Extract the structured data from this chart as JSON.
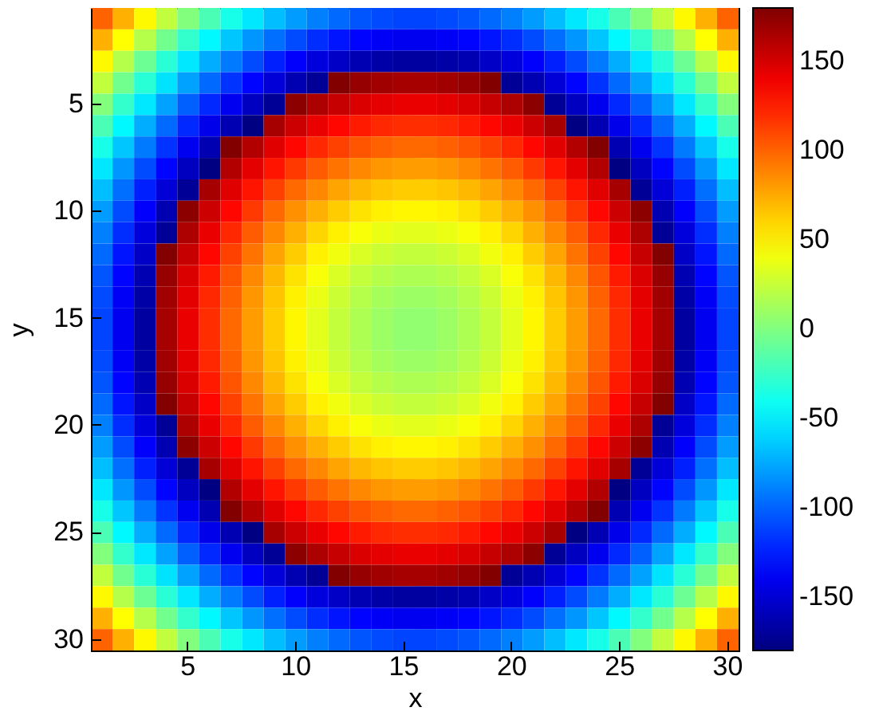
{
  "chart_data": {
    "type": "heatmap",
    "xlabel": "x",
    "ylabel": "y",
    "categories": [
      null,
      null,
      null,
      null,
      "5",
      null,
      null,
      null,
      null,
      "10",
      null,
      null,
      null,
      null,
      "15",
      null,
      null,
      null,
      null,
      "20",
      null,
      null,
      null,
      null,
      "25",
      null,
      null,
      null,
      null,
      "30"
    ],
    "y_categories": [
      null,
      null,
      null,
      null,
      "5",
      null,
      null,
      null,
      null,
      "10",
      null,
      null,
      null,
      null,
      "15",
      null,
      null,
      null,
      null,
      "20",
      null,
      null,
      null,
      null,
      "25",
      null,
      null,
      null,
      null,
      "30"
    ],
    "clim": [
      -180,
      180
    ],
    "cticks": [
      -150,
      -100,
      -50,
      0,
      50,
      100,
      150
    ],
    "cells": [
      [
        100,
        73,
        47,
        23,
        1,
        -19,
        -37,
        -53,
        -68,
        -80,
        -90,
        -98,
        -105,
        -109,
        -111,
        -111,
        -109,
        -105,
        -98,
        -90,
        -80,
        -68,
        -53,
        -37,
        -19,
        1,
        23,
        47,
        73,
        100
      ],
      [
        73,
        45,
        19,
        -5,
        -27,
        -47,
        -65,
        -82,
        -96,
        -109,
        -119,
        -128,
        -134,
        -138,
        -140,
        -140,
        -138,
        -134,
        -128,
        -119,
        -109,
        -96,
        -82,
        -65,
        -47,
        -27,
        -5,
        19,
        45,
        73
      ],
      [
        47,
        19,
        -7,
        -31,
        -53,
        -74,
        -92,
        -109,
        -124,
        -136,
        -147,
        -155,
        -162,
        -166,
        -168,
        -168,
        -166,
        -162,
        -155,
        -147,
        -136,
        -124,
        -109,
        -92,
        -74,
        -53,
        -31,
        -7,
        19,
        47
      ],
      [
        23,
        -5,
        -31,
        -55,
        -78,
        -98,
        -117,
        -134,
        -149,
        -162,
        -172,
        179,
        172,
        168,
        166,
        166,
        168,
        172,
        179,
        -172,
        -162,
        -149,
        -134,
        -117,
        -98,
        -78,
        -55,
        -31,
        -5,
        23
      ],
      [
        1,
        -27,
        -53,
        -78,
        -101,
        -121,
        -140,
        -157,
        -172,
        175,
        164,
        155,
        148,
        144,
        142,
        142,
        144,
        148,
        155,
        164,
        175,
        -172,
        -157,
        -140,
        -121,
        -101,
        -78,
        -53,
        -27,
        1
      ],
      [
        -19,
        -47,
        -74,
        -98,
        -121,
        -142,
        -162,
        -179,
        166,
        153,
        142,
        133,
        126,
        121,
        119,
        119,
        121,
        126,
        133,
        142,
        153,
        166,
        -179,
        -162,
        -142,
        -121,
        -98,
        -74,
        -47,
        -19
      ],
      [
        -37,
        -65,
        -92,
        -117,
        -140,
        -162,
        179,
        162,
        146,
        133,
        121,
        112,
        105,
        101,
        98,
        98,
        101,
        105,
        112,
        121,
        133,
        146,
        162,
        179,
        -162,
        -140,
        -117,
        -92,
        -65,
        -37
      ],
      [
        -53,
        -82,
        -109,
        -134,
        -157,
        -179,
        162,
        144,
        128,
        115,
        103,
        94,
        87,
        82,
        80,
        80,
        82,
        87,
        94,
        103,
        115,
        128,
        144,
        162,
        -179,
        -157,
        -134,
        -109,
        -82,
        -53
      ],
      [
        -68,
        -96,
        -124,
        -149,
        -172,
        166,
        146,
        128,
        112,
        98,
        87,
        77,
        70,
        65,
        63,
        63,
        65,
        70,
        77,
        87,
        98,
        112,
        128,
        146,
        166,
        -172,
        -149,
        -124,
        -96,
        -68
      ],
      [
        -80,
        -109,
        -136,
        -162,
        175,
        153,
        133,
        115,
        98,
        84,
        73,
        63,
        55,
        50,
        48,
        48,
        50,
        55,
        63,
        73,
        84,
        98,
        115,
        133,
        153,
        175,
        -162,
        -136,
        -109,
        -80
      ],
      [
        -90,
        -119,
        -147,
        -172,
        164,
        142,
        121,
        103,
        87,
        73,
        60,
        50,
        43,
        38,
        35,
        35,
        38,
        43,
        50,
        60,
        73,
        87,
        103,
        121,
        142,
        164,
        -172,
        -147,
        -119,
        -90
      ],
      [
        -98,
        -128,
        -155,
        179,
        155,
        133,
        112,
        94,
        77,
        63,
        50,
        40,
        32,
        27,
        24,
        24,
        27,
        32,
        40,
        50,
        63,
        77,
        94,
        112,
        133,
        155,
        179,
        -155,
        -128,
        -98
      ],
      [
        -105,
        -134,
        -162,
        172,
        148,
        126,
        105,
        87,
        70,
        55,
        43,
        32,
        24,
        19,
        16,
        16,
        19,
        24,
        32,
        43,
        55,
        70,
        87,
        105,
        126,
        148,
        172,
        -162,
        -134,
        -105
      ],
      [
        -109,
        -138,
        -166,
        168,
        144,
        121,
        101,
        82,
        65,
        50,
        38,
        27,
        19,
        13,
        10,
        10,
        13,
        19,
        27,
        38,
        50,
        65,
        82,
        101,
        121,
        144,
        168,
        -166,
        -138,
        -109
      ],
      [
        -111,
        -140,
        -168,
        166,
        142,
        119,
        98,
        80,
        63,
        48,
        35,
        24,
        16,
        10,
        6,
        6,
        10,
        16,
        24,
        35,
        48,
        63,
        80,
        98,
        119,
        142,
        166,
        -168,
        -140,
        -111
      ],
      [
        -111,
        -140,
        -168,
        166,
        142,
        119,
        98,
        80,
        63,
        48,
        35,
        24,
        16,
        10,
        6,
        6,
        10,
        16,
        24,
        35,
        48,
        63,
        80,
        98,
        119,
        142,
        166,
        -168,
        -140,
        -111
      ],
      [
        -109,
        -138,
        -166,
        168,
        144,
        121,
        101,
        82,
        65,
        50,
        38,
        27,
        19,
        13,
        10,
        10,
        13,
        19,
        27,
        38,
        50,
        65,
        82,
        101,
        121,
        144,
        168,
        -166,
        -138,
        -109
      ],
      [
        -105,
        -134,
        -162,
        172,
        148,
        126,
        105,
        87,
        70,
        55,
        43,
        32,
        24,
        19,
        16,
        16,
        19,
        24,
        32,
        43,
        55,
        70,
        87,
        105,
        126,
        148,
        172,
        -162,
        -134,
        -105
      ],
      [
        -98,
        -128,
        -155,
        179,
        155,
        133,
        112,
        94,
        77,
        63,
        50,
        40,
        32,
        27,
        24,
        24,
        27,
        32,
        40,
        50,
        63,
        77,
        94,
        112,
        133,
        155,
        179,
        -155,
        -128,
        -98
      ],
      [
        -90,
        -119,
        -147,
        -172,
        164,
        142,
        121,
        103,
        87,
        73,
        60,
        50,
        43,
        38,
        35,
        35,
        38,
        43,
        50,
        60,
        73,
        87,
        103,
        121,
        142,
        164,
        -172,
        -147,
        -119,
        -90
      ],
      [
        -80,
        -109,
        -136,
        -162,
        175,
        153,
        133,
        115,
        98,
        84,
        73,
        63,
        55,
        50,
        48,
        48,
        50,
        55,
        63,
        73,
        84,
        98,
        115,
        133,
        153,
        175,
        -162,
        -136,
        -109,
        -80
      ],
      [
        -68,
        -96,
        -124,
        -149,
        -172,
        166,
        146,
        128,
        112,
        98,
        87,
        77,
        70,
        65,
        63,
        63,
        65,
        70,
        77,
        87,
        98,
        112,
        128,
        146,
        166,
        -172,
        -149,
        -124,
        -96,
        -68
      ],
      [
        -53,
        -82,
        -109,
        -134,
        -157,
        -179,
        162,
        144,
        128,
        115,
        103,
        94,
        87,
        82,
        80,
        80,
        82,
        87,
        94,
        103,
        115,
        128,
        144,
        162,
        -179,
        -157,
        -134,
        -109,
        -82,
        -53
      ],
      [
        -37,
        -65,
        -92,
        -117,
        -140,
        -162,
        179,
        162,
        146,
        133,
        121,
        112,
        105,
        101,
        98,
        98,
        101,
        105,
        112,
        121,
        133,
        146,
        162,
        179,
        -162,
        -140,
        -117,
        -92,
        -65,
        -37
      ],
      [
        -19,
        -47,
        -74,
        -98,
        -121,
        -142,
        -162,
        -179,
        166,
        153,
        142,
        133,
        126,
        121,
        119,
        119,
        121,
        126,
        133,
        142,
        153,
        166,
        -179,
        -162,
        -142,
        -121,
        -98,
        -74,
        -47,
        -19
      ],
      [
        1,
        -27,
        -53,
        -78,
        -101,
        -121,
        -140,
        -157,
        -172,
        175,
        164,
        155,
        148,
        144,
        142,
        142,
        144,
        148,
        155,
        164,
        175,
        -172,
        -157,
        -140,
        -121,
        -101,
        -78,
        -53,
        -27,
        1
      ],
      [
        23,
        -5,
        -31,
        -55,
        -78,
        -98,
        -117,
        -134,
        -149,
        -162,
        -172,
        179,
        172,
        168,
        166,
        166,
        168,
        172,
        179,
        -172,
        -162,
        -149,
        -134,
        -117,
        -98,
        -78,
        -55,
        -31,
        -5,
        23
      ],
      [
        47,
        19,
        -7,
        -31,
        -53,
        -74,
        -92,
        -109,
        -124,
        -136,
        -147,
        -155,
        -162,
        -166,
        -168,
        -168,
        -166,
        -162,
        -155,
        -147,
        -136,
        -124,
        -109,
        -92,
        -74,
        -53,
        -31,
        -7,
        19,
        47
      ],
      [
        73,
        45,
        19,
        -5,
        -27,
        -47,
        -65,
        -82,
        -96,
        -109,
        -119,
        -128,
        -134,
        -138,
        -140,
        -140,
        -138,
        -134,
        -128,
        -119,
        -109,
        -96,
        -82,
        -65,
        -47,
        -27,
        -5,
        19,
        45,
        73
      ],
      [
        100,
        73,
        47,
        23,
        1,
        -19,
        -37,
        -53,
        -68,
        -80,
        -90,
        -98,
        -105,
        -109,
        -111,
        -111,
        -109,
        -105,
        -98,
        -90,
        -80,
        -68,
        -53,
        -37,
        -19,
        1,
        23,
        47,
        73,
        100
      ]
    ]
  }
}
